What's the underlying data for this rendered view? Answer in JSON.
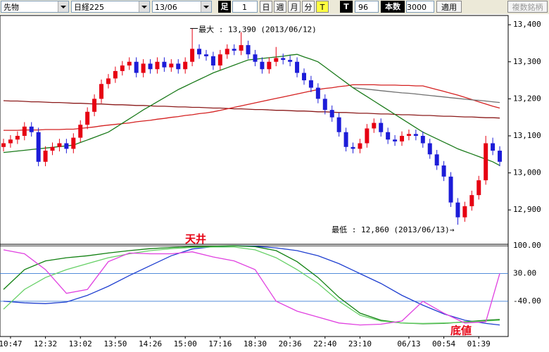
{
  "toolbar": {
    "market": "先物",
    "symbol": "日経225",
    "month": "13/06",
    "bar_label": "足",
    "bar_value": 1,
    "periods": [
      "日",
      "週",
      "月",
      "分",
      "T"
    ],
    "t_label": "T",
    "t_value": 96,
    "count_label": "本数",
    "count_value": 3000,
    "apply": "適用",
    "multi_symbol": "複数銘柄"
  },
  "chart_data": [
    {
      "type": "candlestick",
      "categories": [
        null,
        "10:47",
        null,
        null,
        null,
        null,
        "12:32",
        null,
        null,
        null,
        null,
        "13:02",
        null,
        null,
        null,
        null,
        "13:50",
        null,
        null,
        null,
        null,
        "14:26",
        null,
        null,
        null,
        null,
        "15:00",
        null,
        null,
        null,
        null,
        "17:16",
        null,
        null,
        null,
        null,
        "18:30",
        null,
        null,
        null,
        null,
        "20:36",
        null,
        null,
        null,
        null,
        "22:40",
        null,
        null,
        null,
        null,
        "23:10",
        null,
        null,
        null,
        null,
        null,
        null,
        "06/13",
        null,
        null,
        null,
        null,
        "00:54",
        null,
        null,
        null,
        null,
        "01:39",
        null,
        null,
        null
      ],
      "open": [
        13070,
        13080,
        13090,
        13100,
        13125,
        13110,
        13030,
        13060,
        13070,
        13080,
        13065,
        13095,
        13130,
        13165,
        13200,
        13240,
        13255,
        13275,
        13290,
        13300,
        13270,
        13295,
        13280,
        13300,
        13285,
        13295,
        13280,
        13300,
        13335,
        13320,
        13315,
        13290,
        13320,
        13335,
        13330,
        13345,
        13320,
        13300,
        13280,
        13300,
        13310,
        13305,
        13300,
        13270,
        13250,
        13230,
        13200,
        13170,
        13150,
        13110,
        13070,
        13065,
        13080,
        13120,
        13135,
        13110,
        13090,
        13085,
        13100,
        13105,
        13100,
        13080,
        13050,
        13020,
        12990,
        12920,
        12880,
        12910,
        12940,
        12980,
        13080,
        13060
      ],
      "high": [
        13092,
        13102,
        13112,
        13137,
        13137,
        13122,
        13072,
        13082,
        13092,
        13092,
        13107,
        13142,
        13177,
        13212,
        13252,
        13267,
        13287,
        13302,
        13312,
        13312,
        13307,
        13307,
        13312,
        13312,
        13307,
        13307,
        13312,
        13390,
        13347,
        13332,
        13327,
        13332,
        13347,
        13347,
        13380,
        13357,
        13332,
        13312,
        13312,
        13340,
        13322,
        13317,
        13312,
        13282,
        13262,
        13242,
        13212,
        13182,
        13162,
        13122,
        13082,
        13092,
        13132,
        13147,
        13147,
        13122,
        13102,
        13112,
        13117,
        13117,
        13112,
        13092,
        13062,
        13032,
        13002,
        12932,
        12922,
        12952,
        12992,
        13100,
        13095,
        13072
      ],
      "low": [
        13058,
        13068,
        13078,
        13088,
        13098,
        13018,
        13018,
        13048,
        13058,
        13053,
        13053,
        13083,
        13118,
        13153,
        13188,
        13228,
        13243,
        13263,
        13278,
        13258,
        13258,
        13268,
        13268,
        13273,
        13273,
        13268,
        13268,
        13288,
        13308,
        13303,
        13278,
        13278,
        13308,
        13318,
        13318,
        13308,
        13288,
        13268,
        13268,
        13288,
        13293,
        13288,
        13258,
        13238,
        13218,
        13188,
        13158,
        13138,
        13098,
        13058,
        13053,
        13053,
        13068,
        13108,
        13098,
        13078,
        13073,
        13073,
        13088,
        13088,
        13068,
        13038,
        13008,
        12978,
        12908,
        12860,
        12868,
        12898,
        12928,
        12968,
        13048,
        13018
      ],
      "close": [
        13080,
        13090,
        13100,
        13125,
        13110,
        13030,
        13060,
        13070,
        13080,
        13065,
        13095,
        13130,
        13165,
        13200,
        13240,
        13255,
        13275,
        13290,
        13300,
        13270,
        13295,
        13280,
        13300,
        13285,
        13295,
        13280,
        13300,
        13335,
        13320,
        13315,
        13290,
        13320,
        13335,
        13330,
        13345,
        13320,
        13300,
        13280,
        13300,
        13310,
        13305,
        13300,
        13270,
        13250,
        13230,
        13200,
        13170,
        13150,
        13110,
        13070,
        13065,
        13080,
        13120,
        13135,
        13110,
        13090,
        13085,
        13100,
        13105,
        13100,
        13080,
        13050,
        13020,
        12990,
        12920,
        12880,
        12910,
        12940,
        12980,
        13080,
        13060,
        13030
      ],
      "up_color": "#e60012",
      "down_color": "#1c1cd8",
      "series": [
        {
          "color": "#8b1a1a",
          "values": [
            13195,
            13194,
            13194,
            13193,
            13192,
            13192,
            13191,
            13190,
            13190,
            13189,
            13188,
            13188,
            13187,
            13186,
            13186,
            13185,
            13184,
            13184,
            13183,
            13182,
            13182,
            13181,
            13180,
            13180,
            13179,
            13178,
            13178,
            13177,
            13177,
            13176,
            13175,
            13175,
            13174,
            13173,
            13173,
            13172,
            13171,
            13171,
            13170,
            13169,
            13169,
            13168,
            13167,
            13167,
            13166,
            13165,
            13165,
            13164,
            13163,
            13163,
            13162,
            13161,
            13161,
            13160,
            13159,
            13159,
            13158,
            13157,
            13157,
            13156,
            13155,
            13155,
            13154,
            13153,
            13153,
            13152,
            13151,
            13151,
            13150,
            13149,
            13149,
            13148
          ]
        },
        {
          "color": "#d42020",
          "values": [
            13115,
            13115,
            13115,
            13116,
            13116,
            13116,
            13117,
            13117,
            13117,
            13118,
            13118,
            13120,
            13122,
            13124,
            13127,
            13129,
            13131,
            13133,
            13135,
            13138,
            13140,
            13142,
            13145,
            13147,
            13150,
            13152,
            13155,
            13157,
            13160,
            13162,
            13165,
            13169,
            13173,
            13177,
            13181,
            13185,
            13189,
            13193,
            13197,
            13201,
            13205,
            13209,
            13213,
            13217,
            13221,
            13225,
            13228,
            13230,
            13233,
            13235,
            13238,
            13238,
            13238,
            13238,
            13237,
            13237,
            13237,
            13236,
            13236,
            13235,
            13235,
            13230,
            13225,
            13220,
            13215,
            13210,
            13204,
            13198,
            13192,
            13186,
            13180,
            13175
          ]
        },
        {
          "color": "#707070",
          "values": [
            null,
            null,
            null,
            null,
            null,
            null,
            null,
            null,
            null,
            null,
            null,
            null,
            null,
            null,
            null,
            null,
            null,
            null,
            null,
            null,
            null,
            null,
            null,
            null,
            null,
            null,
            null,
            null,
            null,
            null,
            null,
            null,
            null,
            null,
            null,
            null,
            null,
            null,
            null,
            null,
            null,
            null,
            null,
            null,
            null,
            null,
            null,
            null,
            null,
            null,
            13230,
            13228,
            13226,
            13224,
            13222,
            13220,
            13218,
            13216,
            13215,
            13213,
            13211,
            13209,
            13207,
            13205,
            13203,
            13201,
            13199,
            13197,
            13196,
            13194,
            13192,
            13190
          ]
        },
        {
          "color": "#1a7a1a",
          "values": [
            13055,
            13057,
            13059,
            13061,
            13063,
            13065,
            13067,
            13069,
            13071,
            13073,
            13075,
            13082,
            13089,
            13096,
            13103,
            13110,
            13122,
            13134,
            13146,
            13158,
            13170,
            13181,
            13192,
            13203,
            13214,
            13225,
            13234,
            13243,
            13252,
            13261,
            13270,
            13277,
            13284,
            13291,
            13298,
            13305,
            13307,
            13309,
            13311,
            13313,
            13315,
            13318,
            13320,
            13313,
            13307,
            13300,
            13286,
            13272,
            13258,
            13244,
            13230,
            13218,
            13206,
            13194,
            13182,
            13170,
            13158,
            13146,
            13134,
            13122,
            13110,
            13101,
            13092,
            13083,
            13074,
            13065,
            13058,
            13051,
            13044,
            13037,
            13030,
            13020
          ]
        }
      ],
      "ylim": [
        12811,
        13425
      ],
      "yticks": [
        {
          "value": 12900,
          "label": "12,900"
        },
        {
          "value": 13000,
          "label": "13,000"
        },
        {
          "value": 13100,
          "label": "13,100"
        },
        {
          "value": 13200,
          "label": "13,200"
        },
        {
          "value": 13300,
          "label": "13,300"
        },
        {
          "value": 13400,
          "label": "13,400"
        }
      ],
      "annotations": [
        "最大 : 13,390 (2013/06/12)",
        "最低 : 12,860 (2013/06/13)→"
      ]
    },
    {
      "type": "line",
      "x": [
        0,
        3,
        6,
        9,
        12,
        15,
        18,
        21,
        24,
        27,
        30,
        33,
        36,
        39,
        42,
        45,
        48,
        51,
        54,
        57,
        60,
        63,
        66,
        69,
        71
      ],
      "series": [
        {
          "color": "#1f3fd0",
          "values": [
            -40,
            -44,
            -46,
            -42,
            -25,
            -2,
            25,
            50,
            75,
            92,
            98,
            100,
            99,
            95,
            88,
            75,
            55,
            30,
            5,
            -25,
            -50,
            -72,
            -88,
            -96,
            -100
          ]
        },
        {
          "color": "#108010",
          "values": [
            -10,
            40,
            62,
            70,
            75,
            82,
            88,
            93,
            96,
            98,
            99,
            100,
            98,
            88,
            60,
            20,
            -30,
            -70,
            -88,
            -95,
            -97,
            -96,
            -92,
            -88,
            -86
          ]
        },
        {
          "color": "#66d066",
          "values": [
            -60,
            -10,
            20,
            40,
            55,
            70,
            80,
            88,
            93,
            96,
            97,
            97,
            90,
            70,
            40,
            5,
            -40,
            -75,
            -90,
            -95,
            -96,
            -95,
            -93,
            -90,
            -88
          ]
        },
        {
          "color": "#e040e0",
          "values": [
            90,
            80,
            40,
            -20,
            -10,
            60,
            82,
            80,
            80,
            85,
            72,
            62,
            40,
            -40,
            -65,
            -80,
            -95,
            -100,
            -98,
            -90,
            -40,
            -70,
            -95,
            -92,
            30
          ]
        }
      ],
      "ylim": [
        -106,
        104
      ],
      "yticks": [
        {
          "value": -40,
          "label": "-40.00"
        },
        {
          "value": 30,
          "label": "30.00"
        },
        {
          "value": 100,
          "label": "100.00"
        }
      ],
      "grid": true,
      "annotations": [
        "天井",
        "底値"
      ],
      "annotation_color": "#e60012"
    }
  ]
}
